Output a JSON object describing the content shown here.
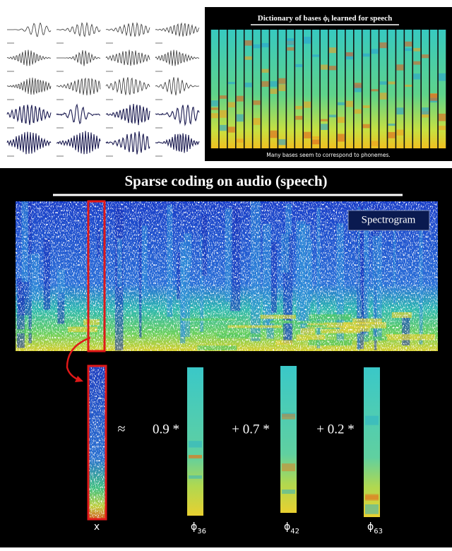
{
  "dictionary_panel": {
    "title_before": "Dictionary of bases",
    "title_symbol": "ϕ",
    "title_subscript": "i",
    "title_after": "learned for speech",
    "caption": "Many bases seem to correspond to phonemes."
  },
  "sparse_panel": {
    "title": "Sparse coding on audio (speech)",
    "spectrogram_label": "Spectrogram",
    "approx": "≈",
    "input_label": "x",
    "terms": [
      {
        "coefficient": "0.9 *",
        "symbol": "ϕ",
        "subscript": "36"
      },
      {
        "coefficient": "+ 0.7 *",
        "symbol": "ϕ",
        "subscript": "42"
      },
      {
        "coefficient": "+ 0.2 *",
        "symbol": "ϕ",
        "subscript": "63"
      }
    ]
  }
}
